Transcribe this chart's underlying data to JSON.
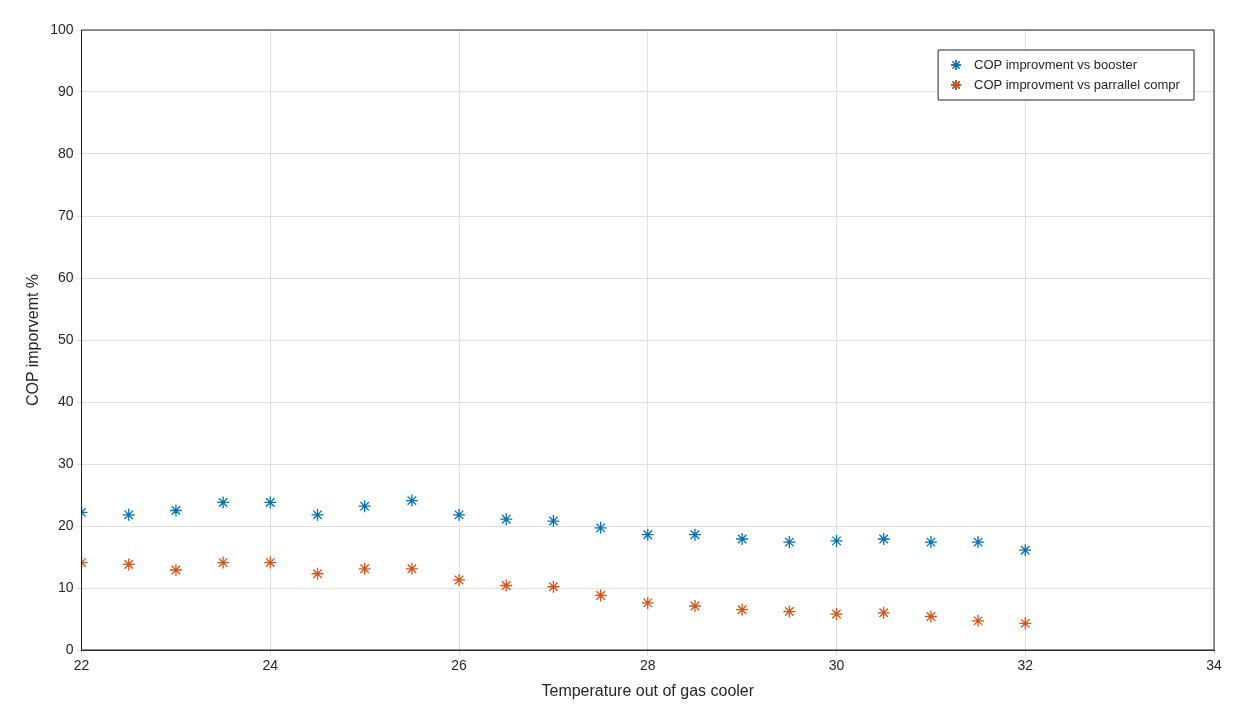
{
  "chart_data": {
    "type": "scatter",
    "xlabel": "Temperature out of gas cooler",
    "ylabel": "COP imporvemt %",
    "x": [
      22,
      22.5,
      23,
      23.5,
      24,
      24.5,
      25,
      25.5,
      26,
      26.5,
      27,
      27.5,
      28,
      28.5,
      29,
      29.5,
      30,
      30.5,
      31,
      31.5,
      32
    ],
    "series": [
      {
        "name": "COP improvment vs booster",
        "color": "#0072bd",
        "values": [
          22.2,
          21.8,
          22.5,
          23.8,
          23.8,
          21.8,
          23.2,
          24.1,
          21.8,
          21.1,
          20.8,
          19.7,
          18.6,
          18.6,
          17.9,
          17.4,
          17.6,
          17.9,
          17.4,
          17.4,
          16.1
        ]
      },
      {
        "name": "COP improvment vs parrallel compr",
        "color": "#d95319",
        "values": [
          14.1,
          13.8,
          12.9,
          14.1,
          14.1,
          12.3,
          13.1,
          13.1,
          11.3,
          10.4,
          10.2,
          8.8,
          7.6,
          7.1,
          6.5,
          6.2,
          5.8,
          6.0,
          5.4,
          4.7,
          4.3
        ]
      }
    ],
    "xlim": [
      22,
      34
    ],
    "xticks": [
      22,
      24,
      26,
      28,
      30,
      32,
      34
    ],
    "ylim": [
      0,
      100
    ],
    "yticks": [
      0,
      10,
      20,
      30,
      40,
      50,
      60,
      70,
      80,
      90,
      100
    ],
    "grid": true,
    "legend": "top right",
    "marker": "cross"
  }
}
